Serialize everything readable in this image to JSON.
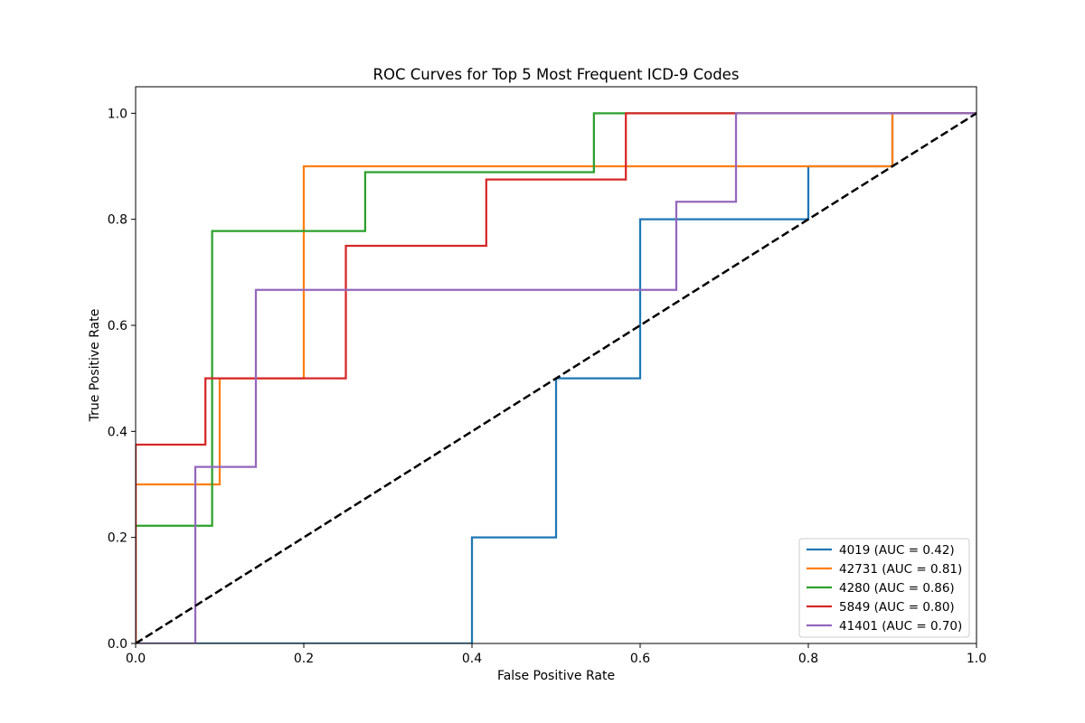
{
  "chart_data": {
    "type": "line",
    "title": "ROC Curves for Top 5 Most Frequent ICD-9 Codes",
    "xlabel": "False Positive Rate",
    "ylabel": "True Positive Rate",
    "xlim": [
      0.0,
      1.0
    ],
    "ylim": [
      0.0,
      1.05
    ],
    "x_ticks": [
      "0.0",
      "0.2",
      "0.4",
      "0.6",
      "0.8",
      "1.0"
    ],
    "y_ticks": [
      "0.0",
      "0.2",
      "0.4",
      "0.6",
      "0.8",
      "1.0"
    ],
    "grid": false,
    "legend_position": "lower-right",
    "series": [
      {
        "name": "4019 (AUC = 0.42)",
        "color": "#1f77b4",
        "points": [
          [
            0.0,
            0.0
          ],
          [
            0.4,
            0.0
          ],
          [
            0.4,
            0.2
          ],
          [
            0.5,
            0.2
          ],
          [
            0.5,
            0.5
          ],
          [
            0.6,
            0.5
          ],
          [
            0.6,
            0.8
          ],
          [
            0.8,
            0.8
          ],
          [
            0.8,
            0.9
          ],
          [
            0.9,
            0.9
          ],
          [
            0.9,
            1.0
          ],
          [
            1.0,
            1.0
          ]
        ]
      },
      {
        "name": "42731 (AUC = 0.81)",
        "color": "#ff7f0e",
        "points": [
          [
            0.0,
            0.0
          ],
          [
            0.0,
            0.3
          ],
          [
            0.1,
            0.3
          ],
          [
            0.1,
            0.5
          ],
          [
            0.2,
            0.5
          ],
          [
            0.2,
            0.9
          ],
          [
            0.9,
            0.9
          ],
          [
            0.9,
            1.0
          ],
          [
            1.0,
            1.0
          ]
        ]
      },
      {
        "name": "4280 (AUC = 0.86)",
        "color": "#2ca02c",
        "points": [
          [
            0.0,
            0.0
          ],
          [
            0.0,
            0.222
          ],
          [
            0.091,
            0.222
          ],
          [
            0.091,
            0.778
          ],
          [
            0.273,
            0.778
          ],
          [
            0.273,
            0.889
          ],
          [
            0.545,
            0.889
          ],
          [
            0.545,
            1.0
          ],
          [
            1.0,
            1.0
          ]
        ]
      },
      {
        "name": "5849 (AUC = 0.80)",
        "color": "#d62728",
        "points": [
          [
            0.0,
            0.0
          ],
          [
            0.0,
            0.375
          ],
          [
            0.083,
            0.375
          ],
          [
            0.083,
            0.5
          ],
          [
            0.25,
            0.5
          ],
          [
            0.25,
            0.75
          ],
          [
            0.417,
            0.75
          ],
          [
            0.417,
            0.875
          ],
          [
            0.583,
            0.875
          ],
          [
            0.583,
            1.0
          ],
          [
            1.0,
            1.0
          ]
        ]
      },
      {
        "name": "41401 (AUC = 0.70)",
        "color": "#9467bd",
        "points": [
          [
            0.0,
            0.0
          ],
          [
            0.071,
            0.0
          ],
          [
            0.071,
            0.333
          ],
          [
            0.143,
            0.333
          ],
          [
            0.143,
            0.667
          ],
          [
            0.643,
            0.667
          ],
          [
            0.643,
            0.833
          ],
          [
            0.714,
            0.833
          ],
          [
            0.714,
            1.0
          ],
          [
            1.0,
            1.0
          ]
        ]
      }
    ],
    "reference_line": {
      "color": "#000000",
      "style": "dashed",
      "points": [
        [
          0.0,
          0.0
        ],
        [
          1.0,
          1.0
        ]
      ]
    }
  }
}
